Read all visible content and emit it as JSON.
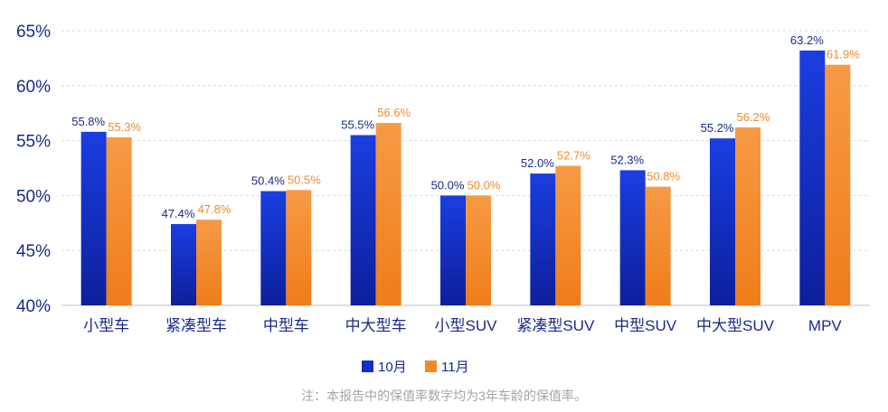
{
  "chart_data": {
    "type": "bar",
    "categories": [
      "小型车",
      "紧凑型车",
      "中型车",
      "中大型车",
      "小型SUV",
      "紧凑型SUV",
      "中型SUV",
      "中大型SUV",
      "MPV"
    ],
    "series": [
      {
        "name": "10月",
        "color": "#1430c8",
        "values": [
          55.8,
          47.4,
          50.4,
          55.5,
          50.0,
          52.0,
          52.3,
          55.2,
          63.2
        ]
      },
      {
        "name": "11月",
        "color": "#f5892a",
        "values": [
          55.3,
          47.8,
          50.5,
          56.6,
          50.0,
          52.7,
          50.8,
          56.2,
          61.9
        ]
      }
    ],
    "ylim": [
      40,
      65
    ],
    "yticks": [
      40,
      45,
      50,
      55,
      60,
      65
    ],
    "ytick_suffix": "%",
    "label_suffix": "%",
    "grid": true,
    "legend_position": "bottom"
  },
  "note": "注：本报告中的保值率数字均为3年车龄的保值率。"
}
